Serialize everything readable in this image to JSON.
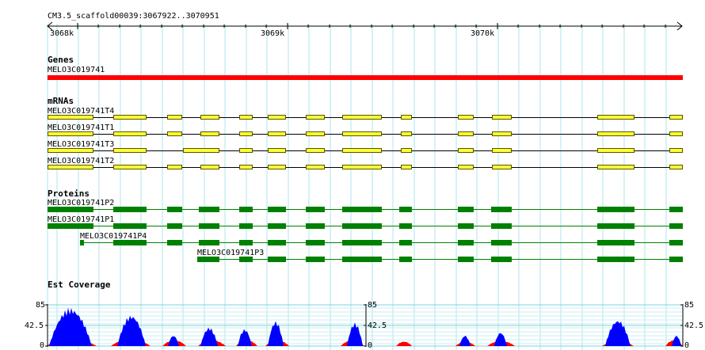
{
  "ruler": {
    "title": "CM3.5_scaffold00039:3067922..3070951",
    "ticks": [
      "3068k",
      "3069k",
      "3070k"
    ]
  },
  "genes": {
    "section_label": "Genes",
    "items": [
      {
        "name": "MELO3C019741"
      }
    ]
  },
  "mrnas": {
    "section_label": "mRNAs",
    "items": [
      {
        "name": "MELO3C019741T4"
      },
      {
        "name": "MELO3C019741T1"
      },
      {
        "name": "MELO3C019741T3"
      },
      {
        "name": "MELO3C019741T2"
      }
    ]
  },
  "proteins": {
    "section_label": "Proteins",
    "items": [
      {
        "name": "MELO3C019741P2"
      },
      {
        "name": "MELO3C019741P1"
      },
      {
        "name": "MELO3C019741P4"
      },
      {
        "name": "MELO3C019741P3"
      }
    ]
  },
  "coverage": {
    "section_label": "Est Coverage",
    "axis_labels": [
      "85",
      "42.5",
      "0"
    ],
    "colors": {
      "primary": "#0000ff",
      "secondary": "#ff0000"
    }
  },
  "colors": {
    "gene": "#ff0000",
    "mrna": "#ffff33",
    "protein": "#008000",
    "grid": "#aee6ee"
  }
}
